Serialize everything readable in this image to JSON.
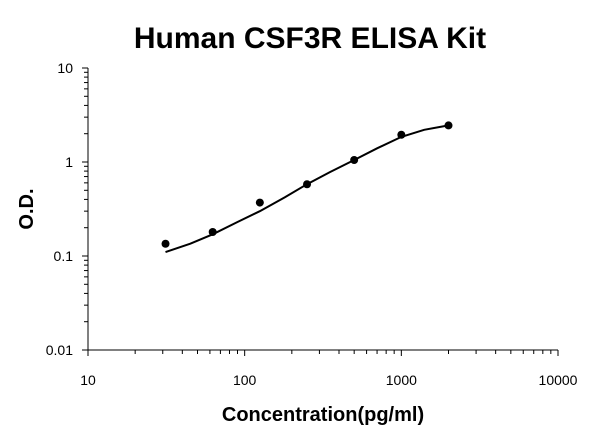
{
  "chart_data": {
    "type": "scatter",
    "title": "Human CSF3R ELISA Kit",
    "xlabel": "Concentration(pg/ml)",
    "ylabel": "O.D.",
    "x_scale": "log",
    "y_scale": "log",
    "xlim": [
      10,
      10000
    ],
    "ylim": [
      0.01,
      10
    ],
    "x_ticks": [
      "10",
      "100",
      "1000",
      "10000"
    ],
    "y_ticks": [
      "0.01",
      "0.1",
      "1",
      "10"
    ],
    "grid": false,
    "legend": "none",
    "series": [
      {
        "x": [
          31.25,
          62.5,
          125,
          250,
          500,
          1000,
          2000
        ],
        "y": [
          0.135,
          0.18,
          0.37,
          0.58,
          1.05,
          1.95,
          2.45
        ]
      }
    ],
    "fit_curve": {
      "x": [
        31.25,
        45,
        62.5,
        90,
        125,
        180,
        250,
        350,
        500,
        700,
        1000,
        1400,
        2000
      ],
      "y": [
        0.11,
        0.135,
        0.17,
        0.23,
        0.3,
        0.42,
        0.58,
        0.78,
        1.05,
        1.4,
        1.85,
        2.2,
        2.45
      ]
    },
    "colors": {
      "points": "#000000",
      "curve": "#000000",
      "axes": "#000000"
    }
  }
}
